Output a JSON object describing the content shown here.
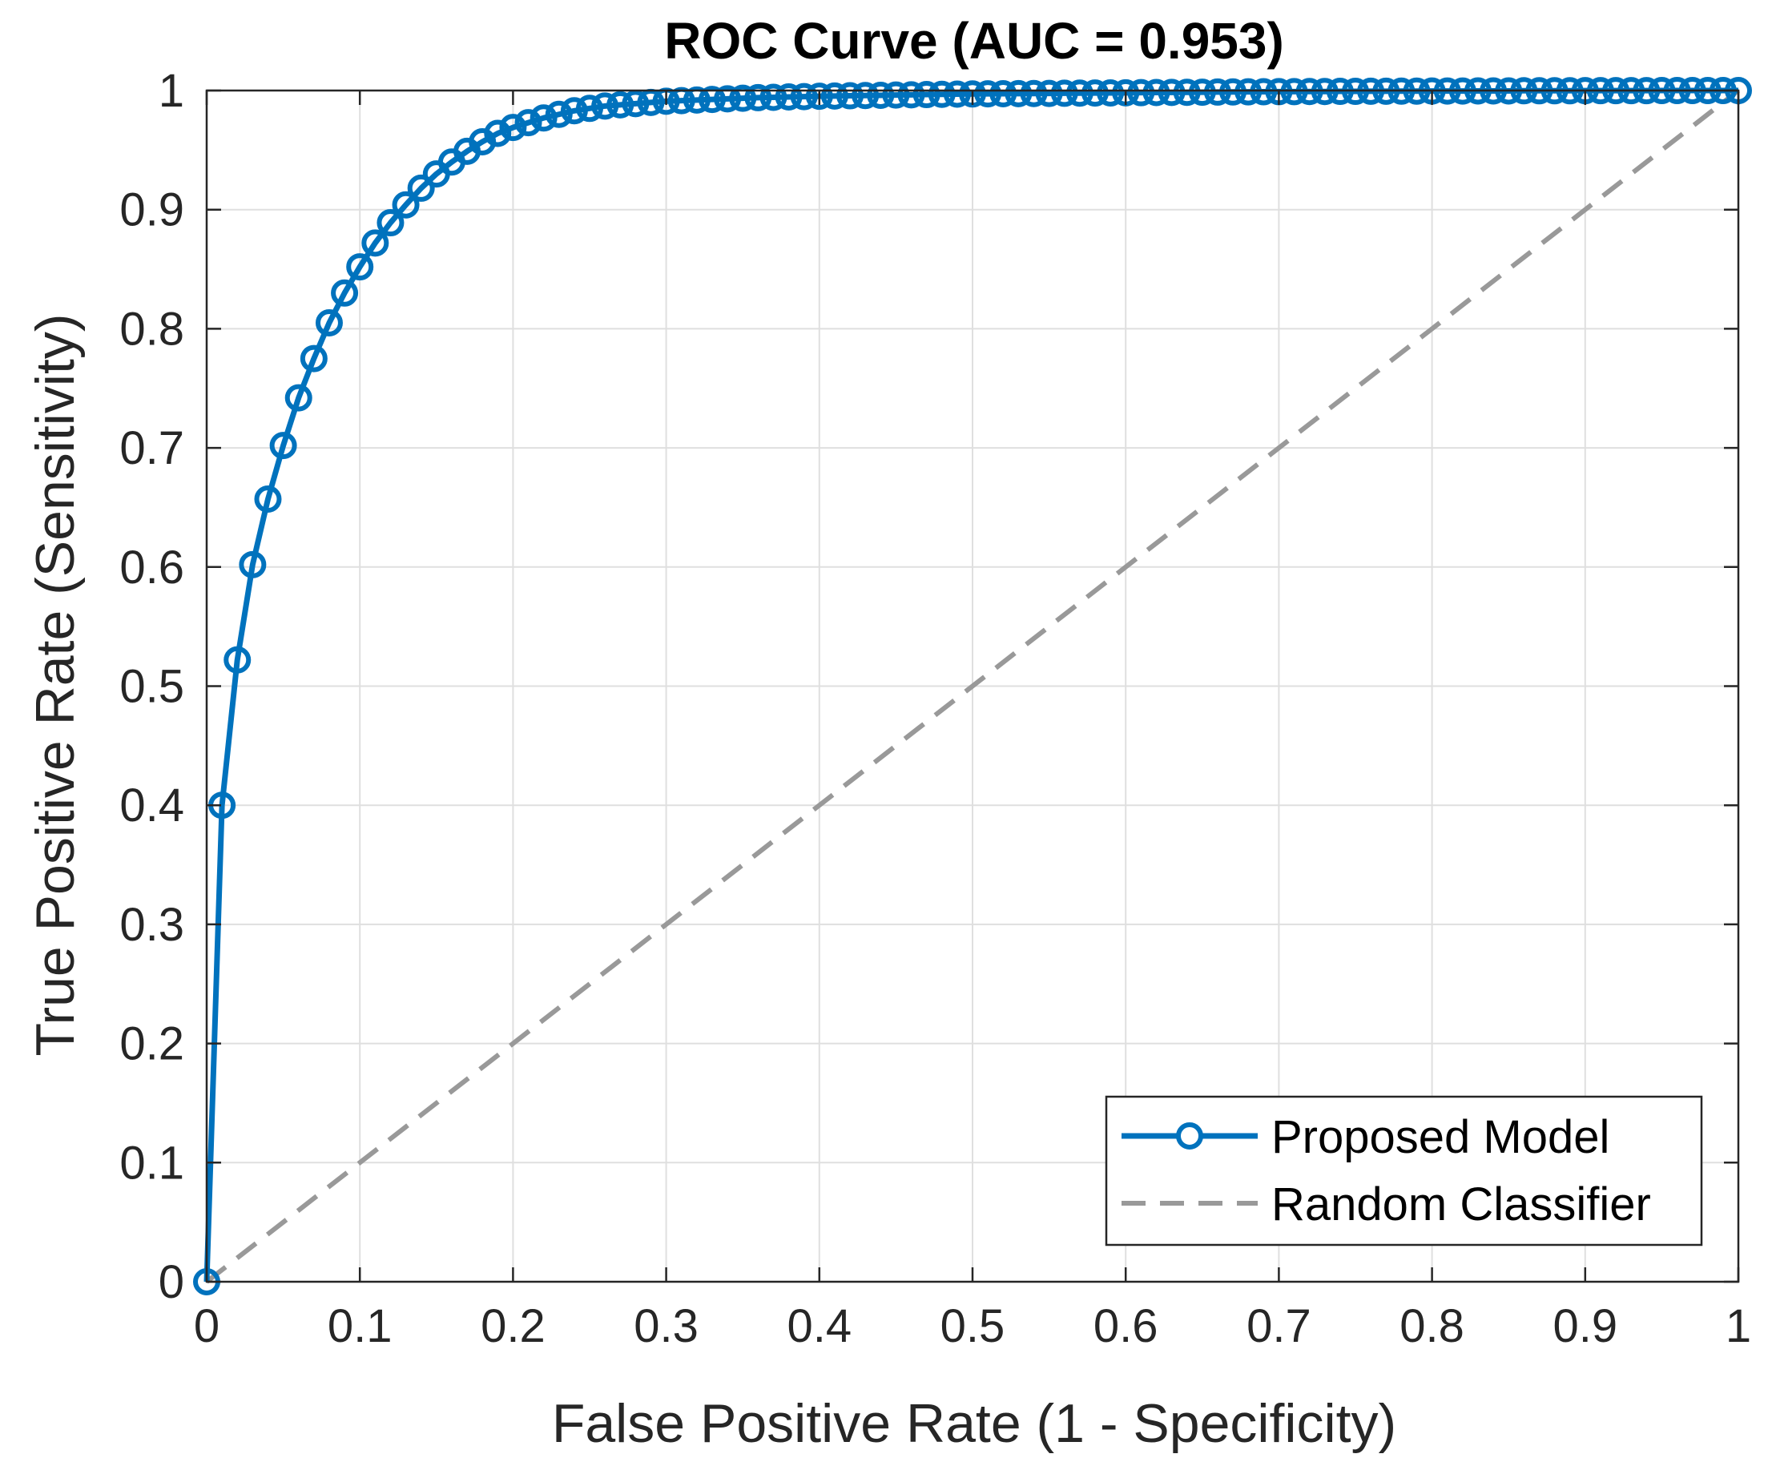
{
  "chart_data": {
    "type": "line",
    "title": "ROC Curve (AUC = 0.953)",
    "xlabel": "False Positive Rate (1 - Specificity)",
    "ylabel": "True Positive Rate (Sensitivity)",
    "xlim": [
      0,
      1
    ],
    "ylim": [
      0,
      1
    ],
    "grid": true,
    "legend_location": "bottom-right",
    "xticks": [
      "0",
      "0.1",
      "0.2",
      "0.3",
      "0.4",
      "0.5",
      "0.6",
      "0.7",
      "0.8",
      "0.9",
      "1"
    ],
    "yticks": [
      "0",
      "0.1",
      "0.2",
      "0.3",
      "0.4",
      "0.5",
      "0.6",
      "0.7",
      "0.8",
      "0.9",
      "1"
    ],
    "series": [
      {
        "name": "Proposed Model",
        "style": "solid-circle-markers",
        "color": "#0072BD",
        "x": [
          0,
          0.01,
          0.02,
          0.03,
          0.04,
          0.05,
          0.06,
          0.07,
          0.08,
          0.09,
          0.1,
          0.11,
          0.12,
          0.13,
          0.14,
          0.15,
          0.16,
          0.17,
          0.18,
          0.19,
          0.2,
          0.21,
          0.22,
          0.23,
          0.24,
          0.25,
          0.26,
          0.27,
          0.28,
          0.29,
          0.3,
          0.31,
          0.32,
          0.33,
          0.34,
          0.35,
          0.36,
          0.37,
          0.38,
          0.39,
          0.4,
          0.41,
          0.42,
          0.43,
          0.44,
          0.45,
          0.46,
          0.47,
          0.48,
          0.49,
          0.5,
          0.51,
          0.52,
          0.53,
          0.54,
          0.55,
          0.56,
          0.57,
          0.58,
          0.59,
          0.6,
          0.61,
          0.62,
          0.63,
          0.64,
          0.65,
          0.66,
          0.67,
          0.68,
          0.69,
          0.7,
          0.71,
          0.72,
          0.73,
          0.74,
          0.75,
          0.76,
          0.77,
          0.78,
          0.79,
          0.8,
          0.81,
          0.82,
          0.83,
          0.84,
          0.85,
          0.86,
          0.87,
          0.88,
          0.89,
          0.9,
          0.91,
          0.92,
          0.93,
          0.94,
          0.95,
          0.96,
          0.97,
          0.98,
          0.99,
          1.0
        ],
        "y": [
          0,
          0.4,
          0.522,
          0.602,
          0.657,
          0.702,
          0.742,
          0.775,
          0.805,
          0.83,
          0.852,
          0.872,
          0.889,
          0.904,
          0.918,
          0.93,
          0.94,
          0.949,
          0.957,
          0.964,
          0.969,
          0.973,
          0.977,
          0.98,
          0.983,
          0.985,
          0.987,
          0.988,
          0.989,
          0.99,
          0.991,
          0.9915,
          0.992,
          0.9925,
          0.993,
          0.9935,
          0.994,
          0.9943,
          0.9946,
          0.9949,
          0.9952,
          0.9954,
          0.9956,
          0.9958,
          0.996,
          0.9962,
          0.9964,
          0.9966,
          0.9968,
          0.997,
          0.9971,
          0.9972,
          0.9973,
          0.9974,
          0.9975,
          0.9976,
          0.9977,
          0.9978,
          0.9979,
          0.998,
          0.9981,
          0.9982,
          0.9983,
          0.9984,
          0.9985,
          0.9986,
          0.9987,
          0.9988,
          0.9989,
          0.999,
          0.9991,
          0.9991,
          0.9992,
          0.9992,
          0.9993,
          0.9993,
          0.9994,
          0.9994,
          0.9995,
          0.9995,
          0.9996,
          0.9996,
          0.9996,
          0.9997,
          0.9997,
          0.9997,
          0.9998,
          0.9998,
          0.9998,
          0.9998,
          0.9999,
          0.9999,
          0.9999,
          0.9999,
          0.9999,
          1.0,
          1.0,
          1.0,
          1.0,
          1.0,
          1.0
        ]
      },
      {
        "name": "Random Classifier",
        "style": "dashed",
        "color": "#999999",
        "x": [
          0,
          1
        ],
        "y": [
          0,
          1
        ]
      }
    ]
  }
}
